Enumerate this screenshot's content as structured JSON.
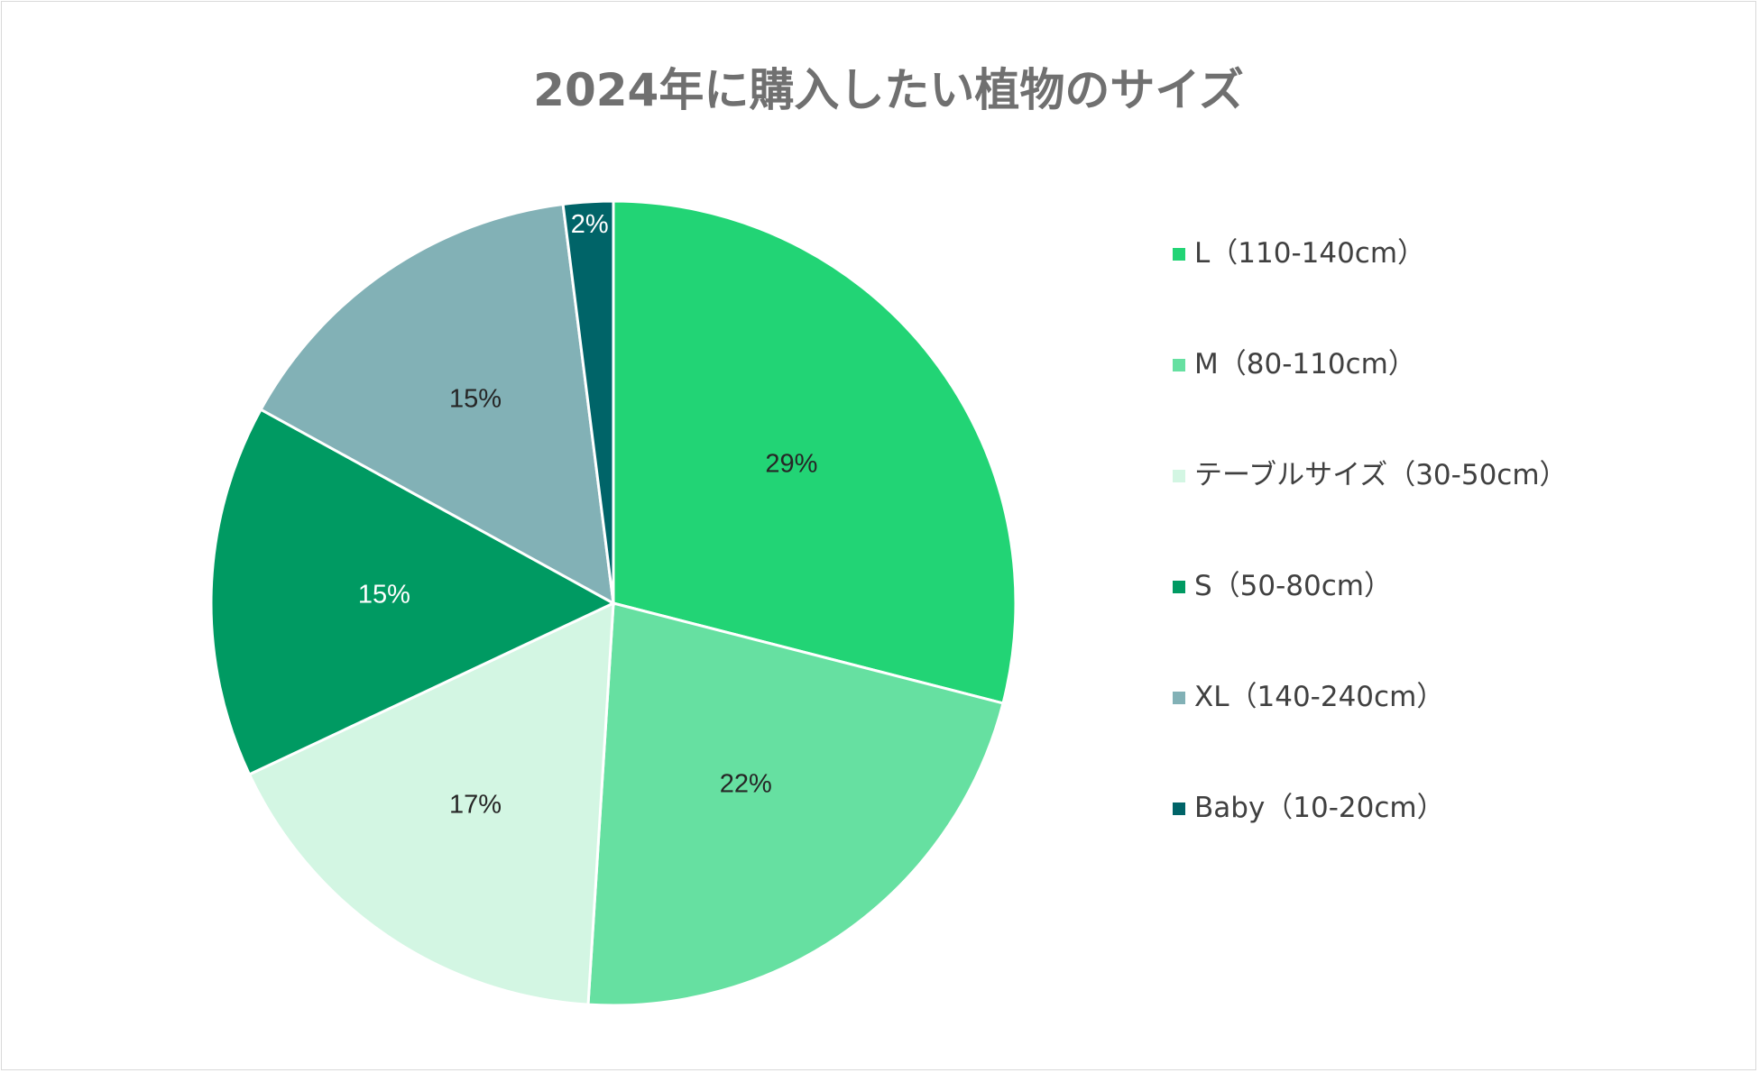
{
  "chart_data": {
    "type": "pie",
    "title": "2024年に購入したい植物のサイズ",
    "categories": [
      "L（110-140cm）",
      "M（80-110cm）",
      "テーブルサイズ（30-50cm）",
      "S（50-80cm）",
      "XL（140-240cm）",
      "Baby（10-20cm）"
    ],
    "values": [
      29,
      22,
      17,
      15,
      15,
      2
    ],
    "value_labels": [
      "29%",
      "22%",
      "17%",
      "15%",
      "15%",
      "2%"
    ],
    "colors": [
      "#22d475",
      "#66e0a1",
      "#d3f6e3",
      "#009a62",
      "#82b1b6",
      "#006468"
    ],
    "label_colors": [
      "#262626",
      "#262626",
      "#262626",
      "#ffffff",
      "#262626",
      "#ffffff"
    ],
    "start_angle_deg": 0,
    "direction": "clockwise",
    "legend_position": "right"
  }
}
